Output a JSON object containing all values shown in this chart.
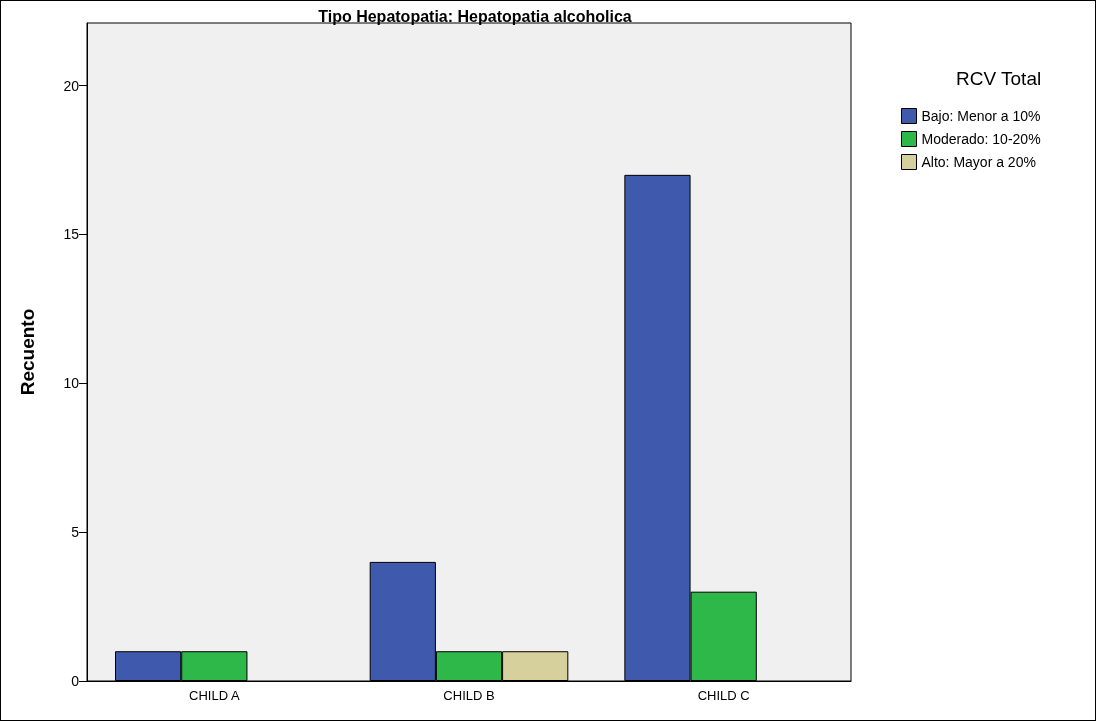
{
  "chart_data": {
    "type": "bar",
    "title": "Tipo Hepatopatia: Hepatopatia alcoholica",
    "ylabel": "Recuento",
    "legend_title": "RCV Total",
    "categories": [
      "CHILD A",
      "CHILD B",
      "CHILD C"
    ],
    "series": [
      {
        "name": "Bajo: Menor a 10%",
        "color": "#3f59ad",
        "values": [
          1,
          4,
          17
        ]
      },
      {
        "name": "Moderado: 10-20%",
        "color": "#2fb84a",
        "values": [
          1,
          1,
          3
        ]
      },
      {
        "name": "Alto: Mayor a 20%",
        "color": "#d6d19c",
        "values": [
          null,
          1,
          null
        ]
      }
    ],
    "ylim": [
      0,
      22.1
    ],
    "yticks": [
      0,
      5,
      10,
      15,
      20
    ],
    "grid": false,
    "legend": "top right"
  }
}
